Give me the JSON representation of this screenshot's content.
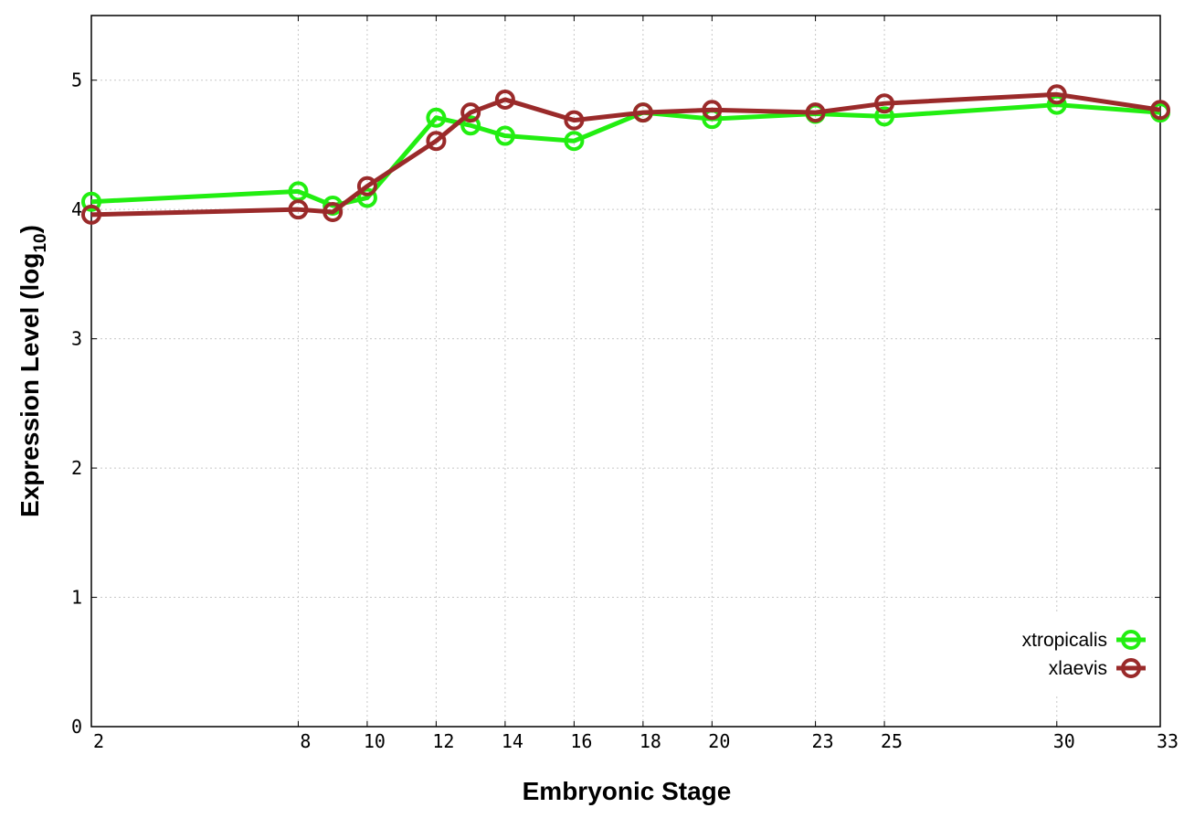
{
  "chart_data": {
    "type": "line",
    "xlabel": "Embryonic Stage",
    "ylabel_main": "Expression Level (log",
    "ylabel_sub": "10",
    "ylabel_close": ")",
    "xlim": [
      2,
      33
    ],
    "ylim": [
      0,
      5.5
    ],
    "x_ticks": [
      2,
      8,
      10,
      12,
      14,
      16,
      18,
      20,
      23,
      25,
      30,
      33
    ],
    "y_ticks": [
      0,
      1,
      2,
      3,
      4,
      5
    ],
    "grid": true,
    "legend_position": "bottom-right",
    "series": [
      {
        "name": "xtropicalis",
        "color": "#22ee11",
        "x": [
          2,
          8,
          9,
          10,
          12,
          13,
          14,
          16,
          18,
          20,
          23,
          25,
          30,
          33
        ],
        "y": [
          4.06,
          4.14,
          4.03,
          4.09,
          4.71,
          4.65,
          4.57,
          4.53,
          4.75,
          4.7,
          4.74,
          4.72,
          4.81,
          4.75
        ]
      },
      {
        "name": "xlaevis",
        "color": "#9a2a2a",
        "x": [
          2,
          8,
          9,
          10,
          12,
          13,
          14,
          16,
          18,
          20,
          23,
          25,
          30,
          33
        ],
        "y": [
          3.96,
          4.0,
          3.98,
          4.18,
          4.53,
          4.75,
          4.85,
          4.69,
          4.75,
          4.77,
          4.75,
          4.82,
          4.89,
          4.77
        ]
      }
    ]
  }
}
